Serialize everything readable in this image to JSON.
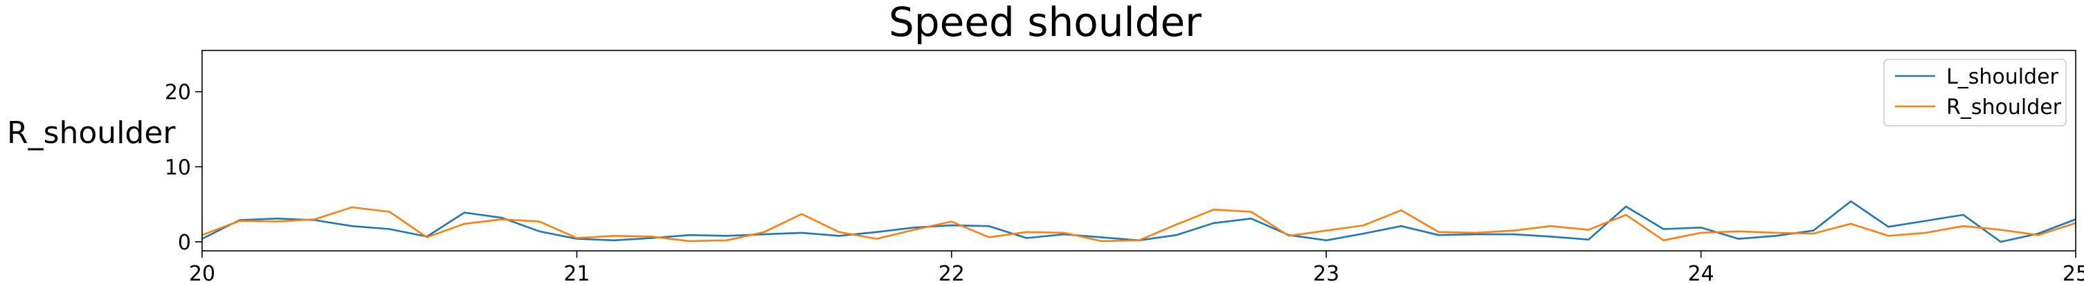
{
  "chart_data": {
    "type": "line",
    "title": "Speed shoulder",
    "xlabel": "",
    "ylabel": "R_shoulder",
    "xlim": [
      20,
      25
    ],
    "ylim": [
      -1.2,
      25.5
    ],
    "x_ticks": [
      20,
      21,
      22,
      23,
      24,
      25
    ],
    "y_ticks": [
      0,
      10,
      20
    ],
    "grid": false,
    "legend": "top-right",
    "colors": [
      "#1f77b4",
      "#ff7f0e"
    ],
    "x": [
      20.0,
      20.1,
      20.2,
      20.3,
      20.4,
      20.5,
      20.6,
      20.7,
      20.8,
      20.9,
      21.0,
      21.1,
      21.2,
      21.3,
      21.4,
      21.5,
      21.6,
      21.7,
      21.8,
      21.9,
      22.0,
      22.1,
      22.2,
      22.3,
      22.4,
      22.5,
      22.6,
      22.7,
      22.8,
      22.9,
      23.0,
      23.1,
      23.2,
      23.3,
      23.4,
      23.5,
      23.6,
      23.7,
      23.8,
      23.9,
      24.0,
      24.1,
      24.2,
      24.3,
      24.4,
      24.5,
      24.6,
      24.7,
      24.8,
      24.9,
      25.0
    ],
    "series": [
      {
        "name": "L_shoulder",
        "values": [
          0.4,
          2.9,
          3.1,
          2.9,
          2.1,
          1.7,
          0.7,
          3.9,
          3.2,
          1.4,
          0.4,
          0.2,
          0.5,
          0.9,
          0.8,
          1.0,
          1.2,
          0.8,
          1.3,
          1.9,
          2.2,
          2.1,
          0.5,
          1.0,
          0.6,
          0.2,
          0.9,
          2.5,
          3.1,
          0.9,
          0.2,
          1.1,
          2.1,
          0.9,
          1.0,
          1.0,
          0.7,
          0.3,
          4.7,
          1.7,
          1.9,
          0.4,
          0.8,
          1.5,
          5.4,
          2.0,
          2.8,
          3.6,
          0.0,
          1.1,
          3.0
        ]
      },
      {
        "name": "R_shoulder",
        "values": [
          0.9,
          2.8,
          2.7,
          3.0,
          4.6,
          4.0,
          0.6,
          2.4,
          3.0,
          2.7,
          0.5,
          0.8,
          0.7,
          0.1,
          0.2,
          1.3,
          3.7,
          1.3,
          0.4,
          1.6,
          2.7,
          0.6,
          1.3,
          1.2,
          0.1,
          0.2,
          2.3,
          4.3,
          4.0,
          0.8,
          1.5,
          2.2,
          4.2,
          1.3,
          1.2,
          1.5,
          2.1,
          1.6,
          3.6,
          0.2,
          1.2,
          1.4,
          1.2,
          1.1,
          2.4,
          0.8,
          1.2,
          2.1,
          1.6,
          0.9,
          2.5
        ]
      }
    ]
  }
}
